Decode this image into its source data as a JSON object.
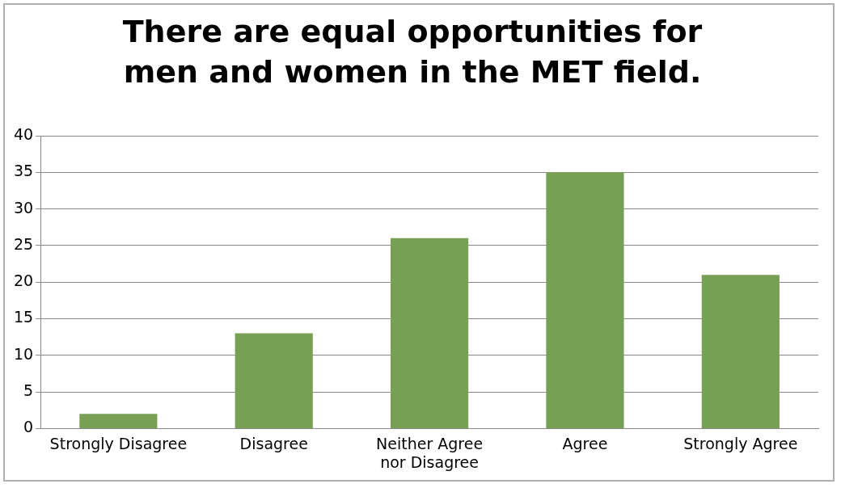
{
  "chart_data": {
    "type": "bar",
    "title": "There are equal opportunities for men and women in the MET field.",
    "categories": [
      "Strongly Disagree",
      "Disagree",
      "Neither Agree nor Disagree",
      "Agree",
      "Strongly Agree"
    ],
    "values": [
      2,
      13,
      26,
      35,
      21
    ],
    "color": "#77a055",
    "ylim": [
      0,
      40
    ],
    "yticks": [
      0,
      5,
      10,
      15,
      20,
      25,
      30,
      35,
      40
    ],
    "grid": "y",
    "legend": false
  }
}
